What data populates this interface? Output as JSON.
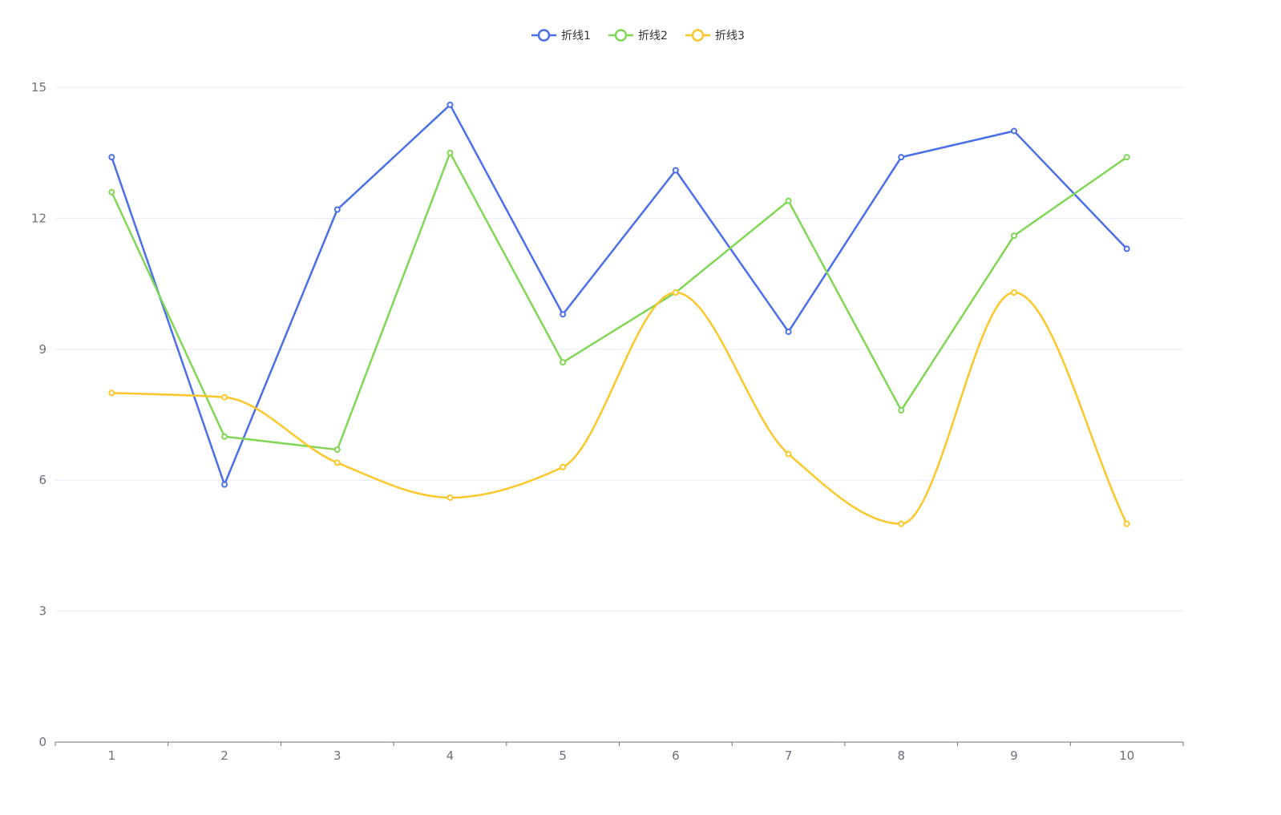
{
  "chart_data": {
    "type": "line",
    "title": "",
    "xlabel": "",
    "ylabel": "",
    "categories": [
      "1",
      "2",
      "3",
      "4",
      "5",
      "6",
      "7",
      "8",
      "9",
      "10"
    ],
    "ylim": [
      0,
      15
    ],
    "yticks": [
      0,
      3,
      6,
      9,
      12,
      15
    ],
    "grid": true,
    "legend_position": "top-center",
    "series": [
      {
        "name": "折线1",
        "color": "#4b6fe9",
        "smooth": false,
        "values": [
          13.4,
          5.9,
          12.2,
          14.6,
          9.8,
          13.1,
          9.4,
          13.4,
          14.0,
          11.3
        ]
      },
      {
        "name": "折线2",
        "color": "#80d756",
        "smooth": false,
        "values": [
          12.6,
          7.0,
          6.7,
          13.5,
          8.7,
          10.3,
          12.4,
          7.6,
          11.6,
          13.4
        ]
      },
      {
        "name": "折线3",
        "color": "#fbc72a",
        "smooth": true,
        "values": [
          8.0,
          7.9,
          6.4,
          5.6,
          6.3,
          10.3,
          6.6,
          5.0,
          10.3,
          5.0
        ]
      }
    ]
  }
}
